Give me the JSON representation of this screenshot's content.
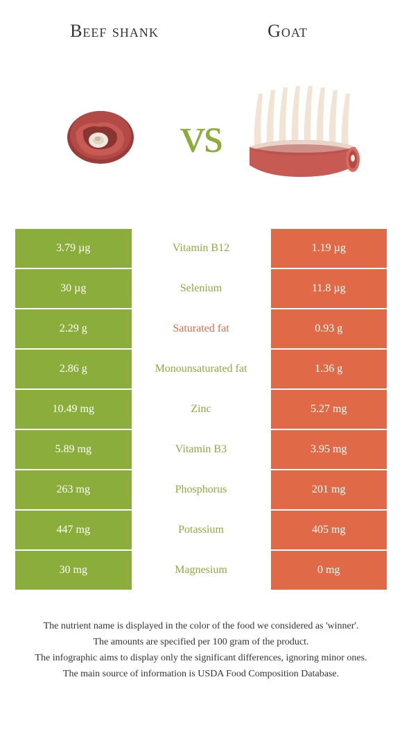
{
  "header": {
    "left": "Beef shank",
    "right": "Goat"
  },
  "vs": {
    "text": "vs",
    "color": "#8aad3b"
  },
  "colors": {
    "left_bg": "#8aad3b",
    "right_bg": "#e06a47",
    "left_text": "#8aad3b",
    "right_text": "#e06a47",
    "cell_text": "#ffffff"
  },
  "rows": [
    {
      "left": "3.79 µg",
      "label": "Vitamin B12",
      "right": "1.19 µg",
      "winner": "left"
    },
    {
      "left": "30 µg",
      "label": "Selenium",
      "right": "11.8 µg",
      "winner": "left"
    },
    {
      "left": "2.29 g",
      "label": "Saturated fat",
      "right": "0.93 g",
      "winner": "right"
    },
    {
      "left": "2.86 g",
      "label": "Monounsaturated fat",
      "right": "1.36 g",
      "winner": "left"
    },
    {
      "left": "10.49 mg",
      "label": "Zinc",
      "right": "5.27 mg",
      "winner": "left"
    },
    {
      "left": "5.89 mg",
      "label": "Vitamin B3",
      "right": "3.95 mg",
      "winner": "left"
    },
    {
      "left": "263 mg",
      "label": "Phosphorus",
      "right": "201 mg",
      "winner": "left"
    },
    {
      "left": "447 mg",
      "label": "Potassium",
      "right": "405 mg",
      "winner": "left"
    },
    {
      "left": "30 mg",
      "label": "Magnesium",
      "right": "0 mg",
      "winner": "left"
    }
  ],
  "footer": {
    "line1": "The nutrient name is displayed in the color of the food we considered as 'winner'.",
    "line2": "The amounts are specified per 100 gram of the product.",
    "line3": "The infographic aims to display only the significant differences, ignoring minor ones.",
    "line4": "The main source of information is USDA Food Composition Database."
  }
}
